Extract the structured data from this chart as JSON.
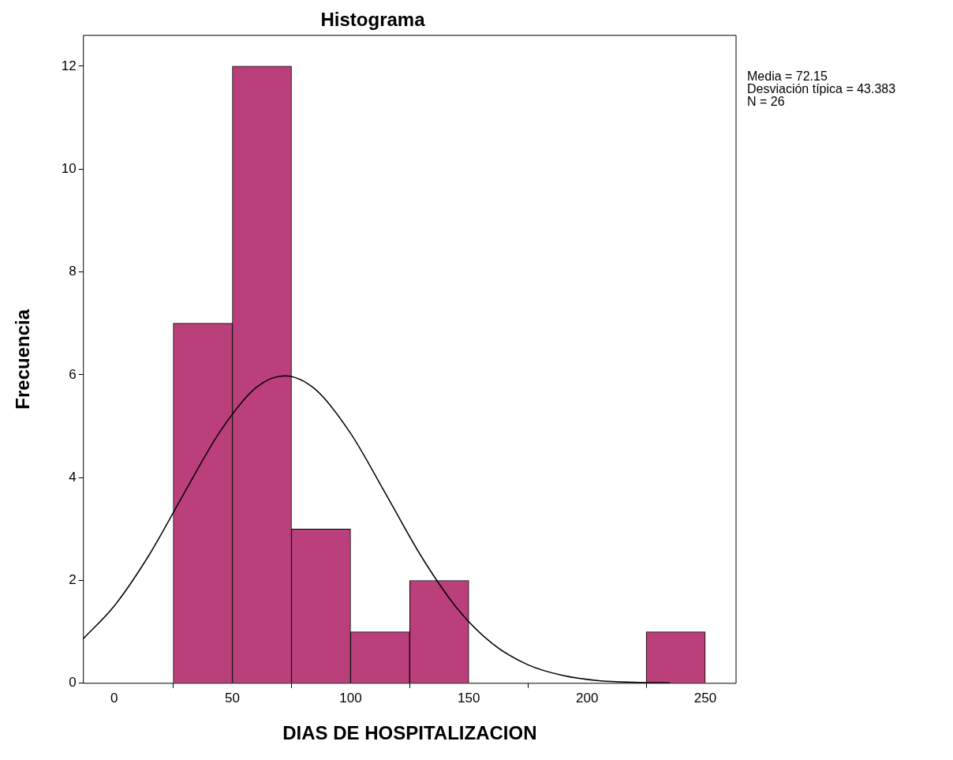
{
  "chart_data": {
    "type": "histogram",
    "title": "Histograma",
    "xlabel": "DIAS DE HOSPITALIZACION",
    "ylabel": "Frecuencia",
    "bins": [
      25,
      50,
      75,
      100,
      125,
      150,
      175,
      200,
      225,
      250
    ],
    "values": [
      7,
      12,
      3,
      1,
      2,
      0,
      0,
      0,
      1
    ],
    "color": "#bb3f7b",
    "series": [
      {
        "type": "line",
        "color": "#000000",
        "x": [
          -13,
          0,
          15,
          30,
          45,
          60,
          72,
          85,
          100,
          115,
          130,
          145,
          160,
          175,
          190,
          205,
          220,
          235
        ],
        "values": [
          0.87,
          1.5,
          2.51,
          3.73,
          4.91,
          5.75,
          5.98,
          5.72,
          4.86,
          3.67,
          2.46,
          1.46,
          0.77,
          0.36,
          0.15,
          0.05,
          0.02,
          0.01
        ]
      }
    ],
    "xlim": [
      -13,
      263
    ],
    "xticks": [
      0,
      50,
      100,
      150,
      200,
      250
    ],
    "ylim": [
      0,
      12.6
    ],
    "yticks": [
      0,
      2,
      4,
      6,
      8,
      10,
      12
    ],
    "grid": false,
    "legend": false,
    "annotations": [
      "Media = 72.15",
      "Desviación típica = 43.383",
      "N = 26"
    ]
  }
}
